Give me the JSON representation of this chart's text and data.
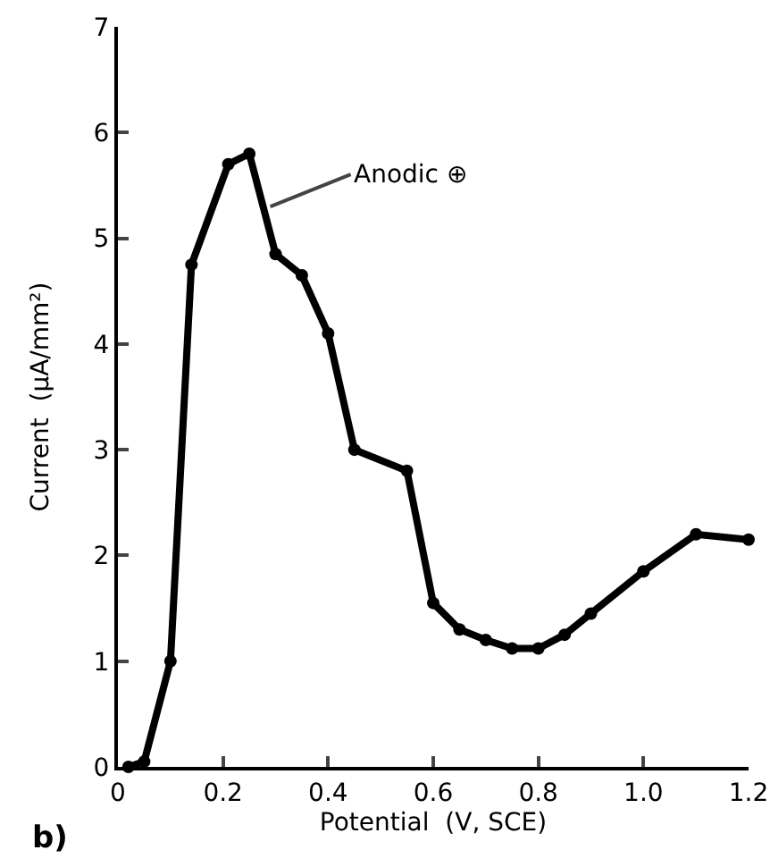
{
  "chart_data": {
    "type": "line",
    "xlabel": "Potential  (V, SCE)",
    "ylabel": "Current  (μA/mm²)",
    "x": [
      0.02,
      0.05,
      0.1,
      0.14,
      0.21,
      0.25,
      0.3,
      0.35,
      0.4,
      0.45,
      0.55,
      0.6,
      0.65,
      0.7,
      0.75,
      0.8,
      0.85,
      0.9,
      1.0,
      1.1,
      1.2
    ],
    "series": [
      {
        "color": "#000000",
        "values": [
          0,
          0.05,
          1.0,
          4.75,
          5.7,
          5.8,
          4.85,
          4.65,
          4.1,
          3.0,
          2.8,
          1.55,
          1.3,
          1.2,
          1.12,
          1.12,
          1.25,
          1.45,
          1.85,
          2.2,
          2.15
        ]
      }
    ],
    "xlim": [
      0,
      1.2
    ],
    "xticks": [
      0,
      0.2,
      0.4,
      0.6,
      0.8,
      {
        "value": 1,
        "label": "1.0"
      },
      1.2
    ],
    "ylim": [
      0,
      7
    ],
    "yticks": [
      0,
      1,
      2,
      3,
      4,
      5,
      6,
      7
    ],
    "annotations": [
      {
        "text": "Anodic ⊕",
        "x": 0.29,
        "y": 5.3
      },
      "b)"
    ],
    "marker": "circle",
    "line_style": "solid"
  }
}
